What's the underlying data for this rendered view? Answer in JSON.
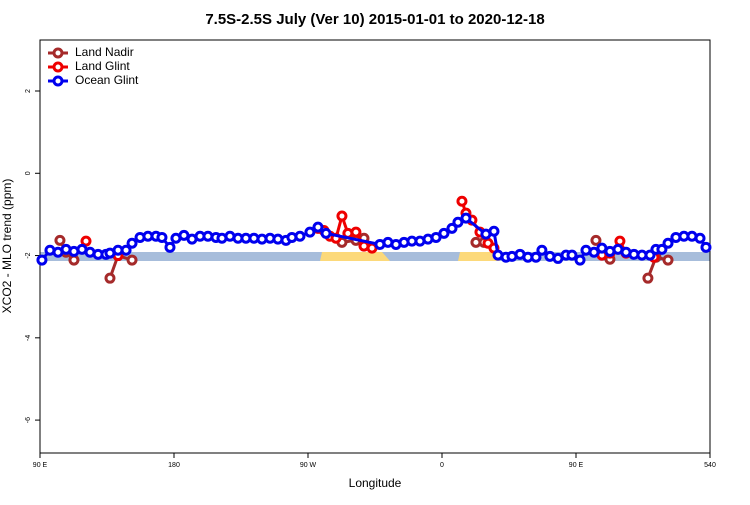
{
  "chart_data": {
    "type": "line",
    "title": "7.5S-2.5S July (Ver 10)   2015-01-01 to 2020-12-18",
    "xlabel": "Longitude",
    "ylabel": "XCO2 - MLO trend (ppm)",
    "xlim": [
      90,
      540
    ],
    "ylim": [
      -6.8,
      3.24
    ],
    "xticks": [
      {
        "value": 90,
        "label": "90 E"
      },
      180,
      {
        "value": 270,
        "label": "90 W"
      },
      {
        "value": 360,
        "label": "0"
      },
      {
        "value": 450,
        "label": "90 E"
      },
      540
    ],
    "yticks": [
      2,
      0,
      -2,
      -4,
      -6
    ],
    "legend": "top-left",
    "series": [
      {
        "name": "Land Nadir",
        "color": "#a52a2a",
        "x": [
          103.4,
          107.5,
          112.8,
          null,
          137,
          142.4,
          151.8,
          null,
          292.8,
          302.2,
          307.6,
          null,
          382.8,
          388.2,
          null,
          463.4,
          472.8,
          null,
          498.3,
          503.7,
          511.8
        ],
        "values": [
          -1.63,
          -1.92,
          -2.11,
          null,
          -2.55,
          -2.0,
          -2.11,
          null,
          -1.68,
          -1.63,
          -1.58,
          null,
          -1.68,
          -1.68,
          null,
          -1.63,
          -2.09,
          null,
          -2.55,
          -2.04,
          -2.11
        ]
      },
      {
        "name": "Land Glint",
        "color": "#ee0000",
        "x": [
          120.9,
          null,
          142.4,
          null,
          276.7,
          280.7,
          284.8,
          288.8,
          292.8,
          296.8,
          302.2,
          307.6,
          313,
          null,
          373.4,
          376.1,
          380.1,
          385.5,
          390.9,
          394.9,
          null,
          467.4,
          472.8,
          479.5,
          483.6,
          null,
          502.4
        ],
        "values": [
          -1.65,
          null,
          -2.0,
          null,
          -1.34,
          -1.39,
          -1.53,
          -1.58,
          -1.04,
          -1.46,
          -1.43,
          -1.77,
          -1.82,
          null,
          -0.68,
          -0.97,
          -1.14,
          -1.43,
          -1.7,
          -1.82,
          null,
          -1.99,
          -1.94,
          -1.65,
          -1.94,
          null,
          -2.04
        ]
      },
      {
        "name": "Ocean Glint",
        "color": "#0000ee",
        "x": [
          91.3,
          96.7,
          102.1,
          107.5,
          112.8,
          118.2,
          123.6,
          129,
          134.3,
          137,
          142.4,
          147.8,
          151.8,
          157.2,
          162.5,
          167.9,
          171.9,
          177.3,
          181.3,
          186.7,
          192.1,
          197.5,
          202.8,
          208.2,
          212.2,
          217.6,
          223,
          228.3,
          233.7,
          239.1,
          244.5,
          249.8,
          255.2,
          259.2,
          264.6,
          271.3,
          276.7,
          282.1,
          318.3,
          323.7,
          329.1,
          334.5,
          339.8,
          345.2,
          350.6,
          356,
          361.3,
          366.7,
          370.7,
          376.1,
          389.5,
          394.9,
          397.6,
          403,
          407,
          412.4,
          417.7,
          423.1,
          427.1,
          432.5,
          437.9,
          443.3,
          447.3,
          452.7,
          456.7,
          462.1,
          467.4,
          472.8,
          478.2,
          483.6,
          488.9,
          494.3,
          499.7,
          503.7,
          507.7,
          511.8,
          517.1,
          522.5,
          527.9,
          533.3,
          537.3
        ],
        "values": [
          -2.11,
          -1.87,
          -1.92,
          -1.85,
          -1.9,
          -1.85,
          -1.92,
          -1.97,
          -1.97,
          -1.94,
          -1.87,
          -1.87,
          -1.7,
          -1.56,
          -1.53,
          -1.53,
          -1.56,
          -1.8,
          -1.58,
          -1.51,
          -1.6,
          -1.53,
          -1.53,
          -1.56,
          -1.58,
          -1.53,
          -1.58,
          -1.58,
          -1.58,
          -1.6,
          -1.58,
          -1.6,
          -1.63,
          -1.56,
          -1.53,
          -1.43,
          -1.31,
          -1.46,
          -1.73,
          -1.68,
          -1.73,
          -1.68,
          -1.65,
          -1.65,
          -1.6,
          -1.56,
          -1.46,
          -1.34,
          -1.19,
          -1.09,
          -1.48,
          -1.41,
          -1.99,
          -2.04,
          -2.02,
          -1.97,
          -2.04,
          -2.04,
          -1.87,
          -2.02,
          -2.07,
          -1.99,
          -1.99,
          -2.11,
          -1.87,
          -1.92,
          -1.82,
          -1.9,
          -1.85,
          -1.92,
          -1.97,
          -1.99,
          -1.99,
          -1.85,
          -1.85,
          -1.7,
          -1.56,
          -1.53,
          -1.53,
          -1.58,
          -1.8
        ]
      }
    ]
  }
}
